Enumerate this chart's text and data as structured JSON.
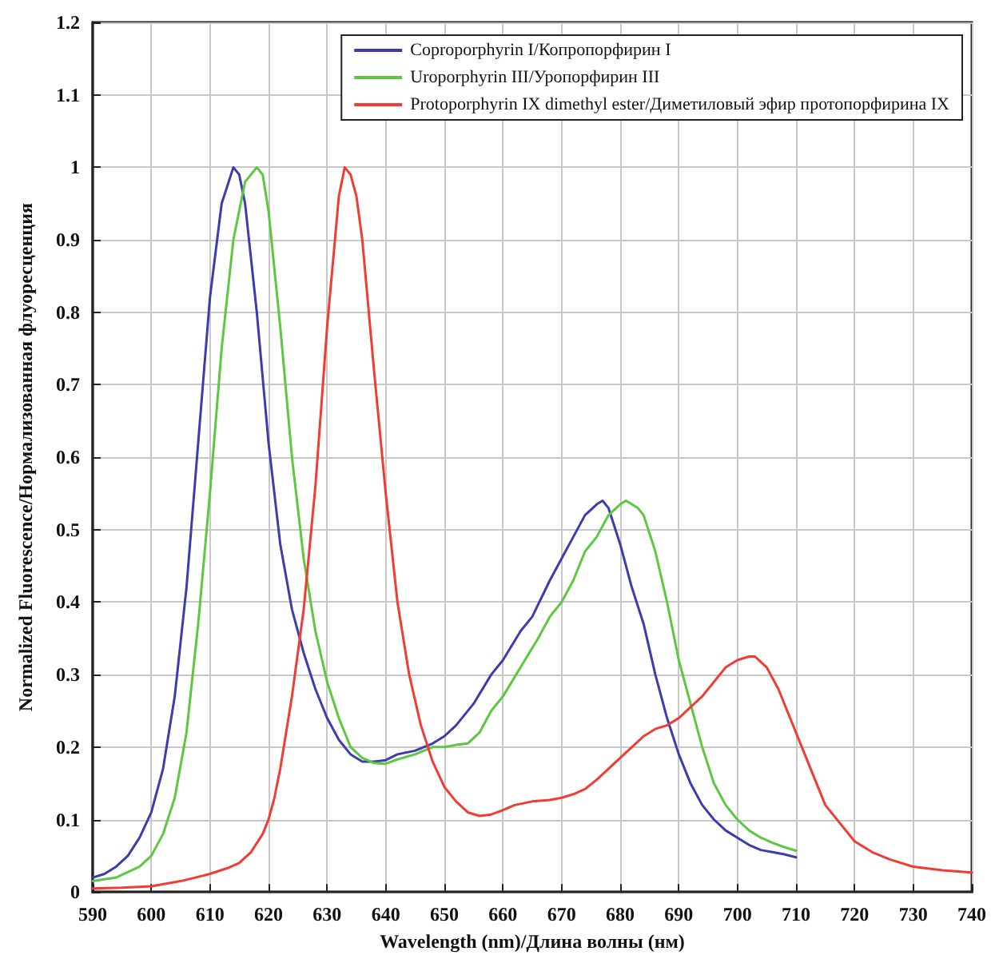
{
  "chart_data": {
    "type": "line",
    "xlabel": "Wavelength (nm)/Длина волны (нм)",
    "ylabel": "Normalized Fluorescence/Нормализованная флуоресценция",
    "xlim": [
      590,
      740
    ],
    "xticks": [
      590,
      600,
      610,
      620,
      630,
      640,
      650,
      660,
      670,
      680,
      690,
      700,
      710,
      720,
      730,
      740
    ],
    "ylim": [
      0,
      1.2
    ],
    "yticks": [
      0,
      0.1,
      0.2,
      0.3,
      0.4,
      0.5,
      0.6,
      0.7,
      0.8,
      0.9,
      1,
      1.1,
      1.2
    ],
    "grid": true,
    "legend": "top right",
    "marker": "none",
    "line_style": "solid",
    "series": [
      {
        "name": "Coproporphyrin I/Копропорфирин I",
        "color": "#3c3caf",
        "x": [
          590,
          592,
          594,
          596,
          598,
          600,
          602,
          604,
          606,
          608,
          610,
          612,
          614,
          615,
          616,
          618,
          620,
          622,
          624,
          626,
          628,
          630,
          632,
          634,
          636,
          638,
          640,
          642,
          645,
          648,
          650,
          652,
          655,
          658,
          660,
          663,
          665,
          668,
          670,
          672,
          674,
          676,
          677,
          678,
          680,
          682,
          684,
          686,
          688,
          690,
          692,
          694,
          696,
          698,
          700,
          702,
          704,
          706,
          708,
          710
        ],
        "values": [
          0.02,
          0.025,
          0.035,
          0.05,
          0.075,
          0.11,
          0.17,
          0.27,
          0.42,
          0.62,
          0.82,
          0.95,
          1.0,
          0.99,
          0.95,
          0.8,
          0.62,
          0.48,
          0.39,
          0.33,
          0.28,
          0.24,
          0.21,
          0.19,
          0.18,
          0.18,
          0.182,
          0.19,
          0.195,
          0.205,
          0.215,
          0.23,
          0.26,
          0.3,
          0.32,
          0.36,
          0.38,
          0.43,
          0.46,
          0.49,
          0.52,
          0.535,
          0.54,
          0.53,
          0.48,
          0.42,
          0.37,
          0.3,
          0.24,
          0.19,
          0.15,
          0.12,
          0.1,
          0.085,
          0.075,
          0.065,
          0.058,
          0.055,
          0.052,
          0.048
        ]
      },
      {
        "name": "Uroporphyrin III/Уропорфирин III",
        "color": "#5cc840",
        "x": [
          590,
          594,
          598,
          600,
          602,
          604,
          606,
          608,
          610,
          612,
          614,
          616,
          618,
          619,
          620,
          622,
          624,
          626,
          628,
          630,
          632,
          634,
          636,
          638,
          640,
          642,
          645,
          648,
          650,
          652,
          654,
          656,
          658,
          660,
          663,
          666,
          668,
          670,
          672,
          674,
          676,
          678,
          680,
          681,
          683,
          684,
          686,
          688,
          690,
          692,
          694,
          696,
          698,
          700,
          702,
          704,
          706,
          708,
          710
        ],
        "values": [
          0.015,
          0.02,
          0.035,
          0.05,
          0.08,
          0.13,
          0.22,
          0.37,
          0.55,
          0.75,
          0.9,
          0.98,
          1.0,
          0.99,
          0.94,
          0.78,
          0.6,
          0.46,
          0.36,
          0.29,
          0.24,
          0.2,
          0.185,
          0.178,
          0.177,
          0.183,
          0.19,
          0.2,
          0.2,
          0.203,
          0.205,
          0.22,
          0.25,
          0.27,
          0.31,
          0.35,
          0.38,
          0.4,
          0.43,
          0.47,
          0.49,
          0.52,
          0.535,
          0.54,
          0.53,
          0.52,
          0.47,
          0.4,
          0.32,
          0.26,
          0.2,
          0.15,
          0.12,
          0.1,
          0.085,
          0.075,
          0.068,
          0.062,
          0.057
        ]
      },
      {
        "name": "Protoporphyrin IX dimethyl ester/Диметиловый эфир протопорфирина IX",
        "color": "#f03c32",
        "x": [
          590,
          595,
          600,
          605,
          610,
          613,
          615,
          617,
          619,
          620,
          621,
          622,
          624,
          626,
          628,
          630,
          632,
          633,
          634,
          635,
          636,
          638,
          640,
          642,
          644,
          646,
          648,
          650,
          652,
          654,
          656,
          658,
          660,
          662,
          665,
          668,
          670,
          672,
          674,
          676,
          678,
          680,
          682,
          684,
          686,
          688,
          690,
          692,
          694,
          696,
          698,
          700,
          702,
          703,
          705,
          707,
          709,
          711,
          713,
          715,
          718,
          720,
          723,
          726,
          730,
          735,
          740
        ],
        "values": [
          0.005,
          0.006,
          0.008,
          0.015,
          0.025,
          0.033,
          0.04,
          0.055,
          0.08,
          0.1,
          0.13,
          0.17,
          0.27,
          0.39,
          0.56,
          0.78,
          0.96,
          1.0,
          0.99,
          0.96,
          0.9,
          0.72,
          0.55,
          0.4,
          0.3,
          0.23,
          0.18,
          0.145,
          0.125,
          0.11,
          0.105,
          0.107,
          0.113,
          0.12,
          0.125,
          0.127,
          0.13,
          0.135,
          0.142,
          0.155,
          0.17,
          0.185,
          0.2,
          0.215,
          0.225,
          0.23,
          0.24,
          0.255,
          0.27,
          0.29,
          0.31,
          0.32,
          0.325,
          0.325,
          0.31,
          0.28,
          0.24,
          0.2,
          0.16,
          0.12,
          0.09,
          0.07,
          0.055,
          0.045,
          0.035,
          0.03,
          0.027
        ]
      }
    ]
  }
}
